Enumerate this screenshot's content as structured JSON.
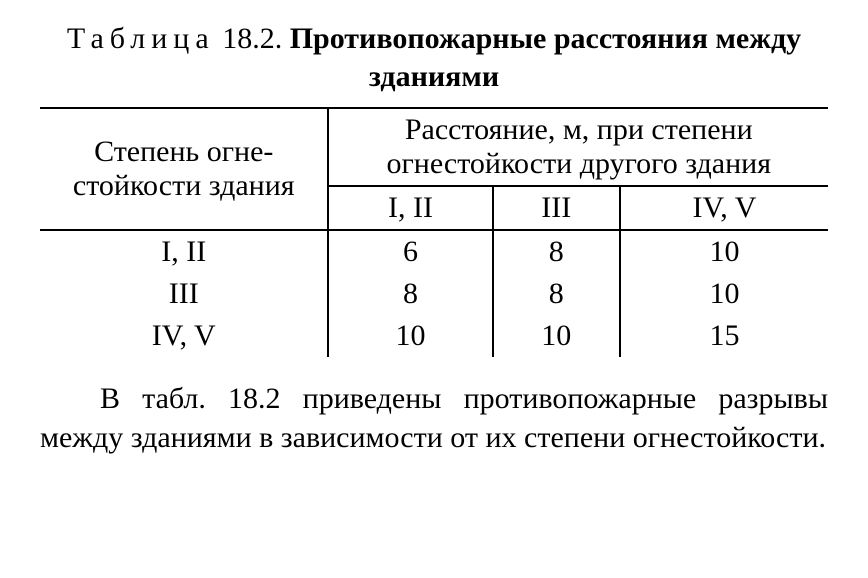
{
  "caption": {
    "label": "Таблица",
    "number": "18.2.",
    "title": "Противопожарные расстояния между зданиями"
  },
  "table": {
    "type": "table",
    "row_header_title": "Степень огне­стойкости здания",
    "col_header_title": "Расстояние, м, при степени огнестойкости другого здания",
    "columns": [
      "I, II",
      "III",
      "IV, V"
    ],
    "rows": [
      {
        "label": "I, II",
        "values": [
          "6",
          "8",
          "10"
        ]
      },
      {
        "label": "III",
        "values": [
          "8",
          "8",
          "10"
        ]
      },
      {
        "label": "IV, V",
        "values": [
          "10",
          "10",
          "15"
        ]
      }
    ],
    "border_color": "#000000",
    "background_color": "#ffffff",
    "font_size_pt": 22
  },
  "paragraph": "В табл. 18.2 приведены противопо­жарные разрывы между зданиями в зави­симости от их степени огнестойкости."
}
